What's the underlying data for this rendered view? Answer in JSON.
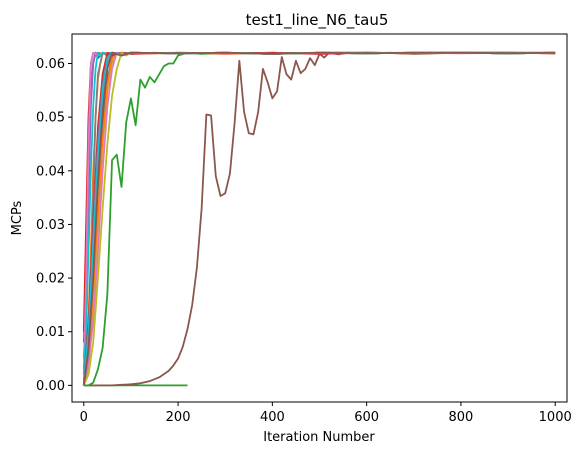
{
  "chart_data": {
    "type": "line",
    "title": "test1_line_N6_tau5",
    "xlabel": "Iteration Number",
    "ylabel": "MCPs",
    "xlim": [
      -25,
      1025
    ],
    "ylim": [
      -0.0031,
      0.0655
    ],
    "xticks": [
      "0",
      "200",
      "400",
      "600",
      "800",
      "1000"
    ],
    "yticks": [
      "0.00",
      "0.01",
      "0.02",
      "0.03",
      "0.04",
      "0.05",
      "0.06"
    ],
    "grid": false,
    "series": [
      {
        "color": "#1f77b4",
        "x": [
          0,
          5,
          10,
          15,
          20,
          25,
          30,
          40,
          60,
          80,
          100,
          150,
          200,
          300,
          400,
          500,
          600,
          700,
          800,
          900,
          1000
        ],
        "y": [
          0.008,
          0.02,
          0.04,
          0.055,
          0.06,
          0.062,
          0.061,
          0.062,
          0.0615,
          0.062,
          0.0618,
          0.062,
          0.0619,
          0.062,
          0.0619,
          0.062,
          0.062,
          0.0619,
          0.062,
          0.062,
          0.062
        ]
      },
      {
        "color": "#ff7f0e",
        "x": [
          0,
          5,
          10,
          15,
          20,
          25,
          30,
          35,
          40,
          50,
          60,
          80,
          100,
          150,
          200,
          300,
          400,
          500,
          600,
          700,
          800,
          900,
          1000
        ],
        "y": [
          0.0,
          0.005,
          0.012,
          0.025,
          0.04,
          0.05,
          0.057,
          0.06,
          0.062,
          0.0615,
          0.062,
          0.0618,
          0.062,
          0.0619,
          0.062,
          0.0618,
          0.062,
          0.0619,
          0.062,
          0.0619,
          0.062,
          0.062,
          0.0619
        ]
      },
      {
        "color": "#2ca02c",
        "x": [
          0,
          5,
          10,
          15,
          20,
          30,
          40,
          60,
          80,
          100,
          120,
          140,
          160,
          180,
          200,
          220
        ],
        "y": [
          0.0,
          0.0,
          0.0,
          0.0,
          0.0,
          0.0,
          0.0,
          0.0,
          0.0,
          0.0,
          0.0,
          0.0,
          0.0,
          0.0,
          0.0,
          0.0
        ]
      },
      {
        "color": "#d62728",
        "x": [
          0,
          5,
          10,
          15,
          20,
          25,
          30,
          40,
          60,
          80,
          100,
          200,
          300,
          400,
          500,
          600,
          700,
          800,
          900,
          1000
        ],
        "y": [
          0.01,
          0.03,
          0.05,
          0.06,
          0.062,
          0.0615,
          0.062,
          0.0618,
          0.062,
          0.0619,
          0.062,
          0.0619,
          0.062,
          0.0618,
          0.062,
          0.062,
          0.0619,
          0.062,
          0.062,
          0.062
        ]
      },
      {
        "color": "#9467bd",
        "x": [
          0,
          5,
          10,
          15,
          20,
          25,
          30,
          40,
          50,
          60,
          80,
          100,
          200,
          300,
          400,
          500,
          600,
          700,
          800,
          900,
          1000
        ],
        "y": [
          0.005,
          0.015,
          0.035,
          0.052,
          0.06,
          0.062,
          0.0615,
          0.062,
          0.0618,
          0.062,
          0.0619,
          0.062,
          0.0619,
          0.062,
          0.0618,
          0.062,
          0.0619,
          0.062,
          0.062,
          0.0619,
          0.062
        ]
      },
      {
        "color": "#8c564b",
        "x": [
          0,
          20,
          40,
          60,
          80,
          100,
          120,
          140,
          160,
          180,
          190,
          200,
          210,
          220,
          230,
          240,
          250,
          260,
          270,
          280,
          290,
          300,
          310,
          320,
          330,
          340,
          350,
          360,
          370,
          380,
          390,
          400,
          410,
          420,
          430,
          440,
          450,
          460,
          470,
          480,
          490,
          500,
          510,
          520,
          540,
          560,
          600,
          650,
          700,
          800,
          900,
          1000
        ],
        "y": [
          0.0,
          0.0,
          0.0,
          0.0,
          0.0001,
          0.0002,
          0.0004,
          0.0008,
          0.0015,
          0.0027,
          0.0037,
          0.005,
          0.0072,
          0.0105,
          0.015,
          0.022,
          0.033,
          0.0505,
          0.0503,
          0.039,
          0.0353,
          0.0358,
          0.0395,
          0.049,
          0.0605,
          0.051,
          0.047,
          0.0468,
          0.051,
          0.059,
          0.0565,
          0.0535,
          0.0548,
          0.0612,
          0.058,
          0.057,
          0.0605,
          0.0582,
          0.059,
          0.061,
          0.0597,
          0.0618,
          0.0611,
          0.062,
          0.0617,
          0.062,
          0.0619,
          0.062,
          0.0618,
          0.062,
          0.0619,
          0.062
        ]
      },
      {
        "color": "#e377c2",
        "x": [
          0,
          5,
          10,
          15,
          20,
          30,
          40,
          60,
          80,
          100,
          200,
          300,
          400,
          500,
          600,
          700,
          800,
          900,
          1000
        ],
        "y": [
          0.002,
          0.02,
          0.045,
          0.06,
          0.062,
          0.0615,
          0.062,
          0.0618,
          0.062,
          0.0619,
          0.062,
          0.0619,
          0.062,
          0.0618,
          0.062,
          0.062,
          0.0619,
          0.062,
          0.062
        ]
      },
      {
        "color": "#7f7f7f",
        "x": [
          0,
          5,
          10,
          15,
          20,
          25,
          30,
          40,
          50,
          60,
          80,
          100,
          200,
          300,
          400,
          500,
          600,
          700,
          800,
          900,
          1000
        ],
        "y": [
          0.0,
          0.002,
          0.008,
          0.02,
          0.035,
          0.05,
          0.058,
          0.062,
          0.0615,
          0.062,
          0.0618,
          0.062,
          0.0619,
          0.062,
          0.0618,
          0.062,
          0.0619,
          0.062,
          0.062,
          0.0619,
          0.062
        ]
      },
      {
        "color": "#bcbd22",
        "x": [
          0,
          10,
          20,
          30,
          40,
          50,
          60,
          70,
          80,
          100,
          200,
          300,
          400,
          500,
          600,
          700,
          800,
          900,
          1000
        ],
        "y": [
          0.0,
          0.003,
          0.015,
          0.03,
          0.045,
          0.055,
          0.06,
          0.062,
          0.0615,
          0.062,
          0.0619,
          0.062,
          0.0618,
          0.062,
          0.0619,
          0.062,
          0.062,
          0.0619,
          0.062
        ]
      },
      {
        "color": "#17becf",
        "x": [
          0,
          5,
          10,
          15,
          20,
          25,
          30,
          35,
          40,
          50,
          60,
          80,
          100,
          200,
          300,
          400,
          500,
          600,
          700,
          800,
          900,
          1000
        ],
        "y": [
          0.003,
          0.01,
          0.025,
          0.04,
          0.052,
          0.059,
          0.062,
          0.0615,
          0.062,
          0.0618,
          0.062,
          0.0619,
          0.062,
          0.0619,
          0.062,
          0.0618,
          0.062,
          0.0619,
          0.062,
          0.062,
          0.0619,
          0.062
        ]
      },
      {
        "color": "#1f77b4",
        "x": [
          0,
          10,
          20,
          30,
          40,
          50,
          60,
          70,
          80,
          100,
          200,
          300,
          400,
          500,
          600,
          700,
          800,
          900,
          1000
        ],
        "y": [
          0.0,
          0.008,
          0.02,
          0.035,
          0.048,
          0.057,
          0.061,
          0.062,
          0.0615,
          0.062,
          0.0619,
          0.062,
          0.0618,
          0.062,
          0.0619,
          0.062,
          0.062,
          0.0619,
          0.062
        ]
      },
      {
        "color": "#ff7f0e",
        "x": [
          0,
          10,
          20,
          30,
          40,
          50,
          60,
          70,
          80,
          100,
          200,
          300,
          400,
          500,
          600,
          700,
          800,
          900,
          1000
        ],
        "y": [
          0.0,
          0.005,
          0.018,
          0.032,
          0.046,
          0.056,
          0.061,
          0.062,
          0.0615,
          0.062,
          0.0619,
          0.062,
          0.0618,
          0.062,
          0.0619,
          0.062,
          0.062,
          0.0619,
          0.062
        ]
      },
      {
        "color": "#2ca02c",
        "x": [
          0,
          10,
          20,
          30,
          40,
          50,
          60,
          70,
          80,
          90,
          100,
          110,
          120,
          130,
          140,
          150,
          160,
          170,
          180,
          190,
          200,
          220,
          250,
          300,
          400,
          500,
          600,
          700,
          800,
          900,
          1000
        ],
        "y": [
          0.0,
          0.0,
          0.0005,
          0.003,
          0.007,
          0.017,
          0.042,
          0.043,
          0.037,
          0.049,
          0.0535,
          0.0485,
          0.057,
          0.0555,
          0.0575,
          0.0565,
          0.058,
          0.0595,
          0.06,
          0.06,
          0.0615,
          0.062,
          0.0618,
          0.062,
          0.0619,
          0.062,
          0.062,
          0.0619,
          0.062,
          0.062,
          0.0619
        ]
      },
      {
        "color": "#d62728",
        "x": [
          0,
          10,
          20,
          30,
          40,
          50,
          60,
          80,
          100,
          200,
          300,
          400,
          500,
          600,
          700,
          800,
          900,
          1000
        ],
        "y": [
          0.0,
          0.012,
          0.03,
          0.048,
          0.058,
          0.062,
          0.0615,
          0.062,
          0.0618,
          0.062,
          0.0619,
          0.062,
          0.0618,
          0.062,
          0.0619,
          0.062,
          0.062,
          0.0619
        ]
      },
      {
        "color": "#9467bd",
        "x": [
          0,
          10,
          20,
          30,
          40,
          50,
          60,
          80,
          100,
          200,
          300,
          400,
          500,
          600,
          700,
          800,
          900,
          1000
        ],
        "y": [
          0.001,
          0.01,
          0.028,
          0.045,
          0.056,
          0.061,
          0.062,
          0.0615,
          0.062,
          0.0619,
          0.062,
          0.0618,
          0.062,
          0.0619,
          0.062,
          0.062,
          0.0619,
          0.062
        ]
      },
      {
        "color": "#e377c2",
        "x": [
          0,
          10,
          20,
          30,
          40,
          50,
          60,
          70,
          80,
          100,
          200,
          300,
          400,
          500,
          600,
          700,
          800,
          900,
          1000
        ],
        "y": [
          0.0,
          0.004,
          0.012,
          0.025,
          0.04,
          0.052,
          0.059,
          0.062,
          0.0615,
          0.062,
          0.0619,
          0.062,
          0.0618,
          0.062,
          0.0619,
          0.062,
          0.062,
          0.0619,
          0.062
        ]
      },
      {
        "color": "#7f7f7f",
        "x": [
          0,
          10,
          20,
          30,
          40,
          50,
          60,
          80,
          100,
          200,
          300,
          400,
          500,
          600,
          700,
          800,
          900,
          1000
        ],
        "y": [
          0.0,
          0.006,
          0.022,
          0.04,
          0.053,
          0.06,
          0.062,
          0.0615,
          0.062,
          0.0619,
          0.062,
          0.0618,
          0.062,
          0.0619,
          0.062,
          0.062,
          0.0619,
          0.062
        ]
      },
      {
        "color": "#bcbd22",
        "x": [
          0,
          10,
          20,
          30,
          40,
          50,
          60,
          70,
          80,
          90,
          100,
          200,
          300,
          400,
          500,
          600,
          700,
          800,
          900,
          1000
        ],
        "y": [
          0.0,
          0.002,
          0.008,
          0.02,
          0.033,
          0.045,
          0.054,
          0.059,
          0.062,
          0.0615,
          0.062,
          0.0619,
          0.062,
          0.0618,
          0.062,
          0.0619,
          0.062,
          0.062,
          0.0619,
          0.062
        ]
      },
      {
        "color": "#17becf",
        "x": [
          0,
          10,
          20,
          30,
          40,
          50,
          60,
          80,
          100,
          200,
          300,
          400,
          500,
          600,
          700,
          800,
          900,
          1000
        ],
        "y": [
          0.0,
          0.01,
          0.026,
          0.043,
          0.055,
          0.061,
          0.062,
          0.0615,
          0.062,
          0.0619,
          0.062,
          0.0618,
          0.062,
          0.0619,
          0.062,
          0.062,
          0.0619,
          0.062
        ]
      },
      {
        "color": "#8c564b",
        "x": [
          0,
          10,
          20,
          30,
          40,
          50,
          60,
          80,
          100,
          200,
          300,
          400,
          500,
          600,
          700,
          800,
          900,
          1000
        ],
        "y": [
          0.0,
          0.007,
          0.02,
          0.038,
          0.051,
          0.059,
          0.062,
          0.0615,
          0.062,
          0.0619,
          0.062,
          0.0618,
          0.062,
          0.0619,
          0.062,
          0.062,
          0.0619,
          0.062
        ]
      }
    ]
  }
}
